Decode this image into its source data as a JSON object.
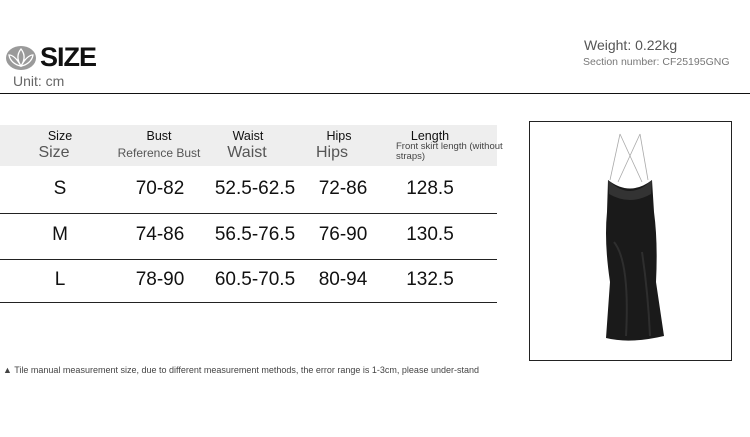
{
  "header": {
    "title": "SIZE",
    "unit": "Unit: cm",
    "weight": "Weight: 0.22kg",
    "section_number": "Section number: CF25195GNG",
    "logo_icon": "lotus-logo"
  },
  "table": {
    "columns": [
      {
        "label": "Size",
        "sublabel": "Size"
      },
      {
        "label": "Bust",
        "sublabel": "Reference Bust"
      },
      {
        "label": "Waist",
        "sublabel": "Waist"
      },
      {
        "label": "Hips",
        "sublabel": "Hips"
      },
      {
        "label": "Length",
        "sublabel": "Front skirt length (without straps)"
      }
    ],
    "rows": [
      [
        "S",
        "70-82",
        "52.5-62.5",
        "72-86",
        "128.5"
      ],
      [
        "M",
        "74-86",
        "56.5-76.5",
        "76-90",
        "130.5"
      ],
      [
        "L",
        "78-90",
        "60.5-70.5",
        "80-94",
        "132.5"
      ]
    ]
  },
  "note": "▲ Tile manual measurement size, due to different measurement methods, the error range is 1-3cm, please under-stand",
  "product_image": "black-slip-maxi-dress"
}
